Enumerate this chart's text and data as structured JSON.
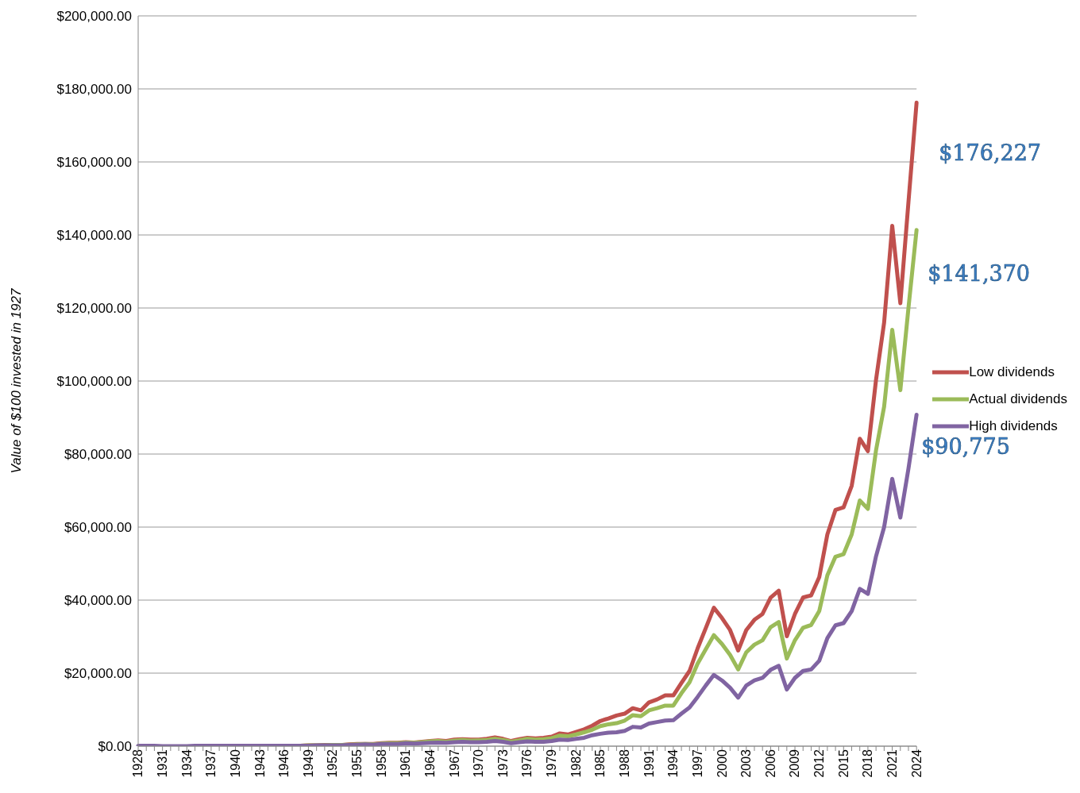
{
  "chart_data": {
    "type": "line",
    "ylabel": "Value of $100 invested in 1927",
    "categories": [
      "1928",
      null,
      null,
      "1931",
      null,
      null,
      "1934",
      null,
      null,
      "1937",
      null,
      null,
      "1940",
      null,
      null,
      "1943",
      null,
      null,
      "1946",
      null,
      null,
      "1949",
      null,
      null,
      "1952",
      null,
      null,
      "1955",
      null,
      null,
      "1958",
      null,
      null,
      "1961",
      null,
      null,
      "1964",
      null,
      null,
      "1967",
      null,
      null,
      "1970",
      null,
      null,
      "1973",
      null,
      null,
      "1976",
      null,
      null,
      "1979",
      null,
      null,
      "1982",
      null,
      null,
      "1985",
      null,
      null,
      "1988",
      null,
      null,
      "1991",
      null,
      null,
      "1994",
      null,
      null,
      "1997",
      null,
      null,
      "2000",
      null,
      null,
      "2003",
      null,
      null,
      "2006",
      null,
      null,
      "2009",
      null,
      null,
      "2012",
      null,
      null,
      "2015",
      null,
      null,
      "2018",
      null,
      null,
      "2021",
      null,
      null,
      "2024"
    ],
    "series": [
      {
        "name": "Low dividends",
        "color": "#c0504d",
        "values": [
          null,
          null,
          null,
          null,
          null,
          null,
          null,
          null,
          null,
          null,
          null,
          null,
          null,
          null,
          null,
          null,
          null,
          null,
          null,
          null,
          100,
          200,
          200,
          300,
          300,
          300,
          500,
          600,
          600,
          600,
          800,
          900,
          900,
          1100,
          1000,
          1200,
          1400,
          1600,
          1400,
          1800,
          1900,
          1800,
          1800,
          2000,
          2400,
          2000,
          1400,
          1900,
          2300,
          2100,
          2300,
          2600,
          3500,
          3200,
          3900,
          4600,
          5600,
          6900,
          7600,
          8400,
          8900,
          10400,
          9800,
          12000,
          12800,
          13900,
          13900,
          17300,
          20600,
          26800,
          32300,
          37900,
          35100,
          31800,
          26200,
          31800,
          34600,
          36200,
          40700,
          42600,
          30100,
          36200,
          40700,
          41300,
          46300,
          58000,
          64700,
          65400,
          71300,
          84200,
          80800,
          100300,
          116000,
          142500,
          121300,
          149000,
          176227
        ]
      },
      {
        "name": "Actual dividends",
        "color": "#9bbb59",
        "values": [
          null,
          null,
          null,
          null,
          null,
          null,
          null,
          null,
          null,
          null,
          null,
          null,
          null,
          null,
          null,
          null,
          null,
          null,
          null,
          100,
          100,
          200,
          200,
          200,
          300,
          300,
          400,
          500,
          600,
          500,
          700,
          800,
          800,
          1000,
          900,
          1100,
          1300,
          1400,
          1200,
          1500,
          1700,
          1500,
          1600,
          1700,
          2000,
          1700,
          1200,
          1600,
          2000,
          1800,
          1900,
          2200,
          2900,
          2700,
          3200,
          3800,
          4500,
          5500,
          6000,
          6300,
          7000,
          8500,
          8200,
          9800,
          10400,
          11100,
          11100,
          14500,
          17500,
          22600,
          26500,
          30400,
          28000,
          25000,
          21000,
          25700,
          27800,
          29000,
          32600,
          34000,
          24000,
          29000,
          32400,
          33200,
          37000,
          46800,
          51900,
          52600,
          58000,
          67300,
          65000,
          81000,
          93000,
          114000,
          97500,
          120000,
          141370
        ]
      },
      {
        "name": "High dividends",
        "color": "#8064a2",
        "values": [
          100,
          100,
          100,
          0,
          0,
          0,
          0,
          100,
          100,
          100,
          100,
          100,
          100,
          100,
          100,
          100,
          100,
          100,
          100,
          100,
          100,
          100,
          200,
          200,
          200,
          200,
          300,
          400,
          500,
          400,
          600,
          600,
          600,
          800,
          700,
          800,
          900,
          1000,
          900,
          1100,
          1200,
          1100,
          1100,
          1200,
          1400,
          1200,
          800,
          1100,
          1300,
          1200,
          1200,
          1400,
          1800,
          1700,
          2000,
          2300,
          3000,
          3400,
          3700,
          3800,
          4200,
          5300,
          5100,
          6200,
          6600,
          7000,
          7100,
          8900,
          10600,
          13500,
          16600,
          19500,
          18000,
          16000,
          13300,
          16600,
          18000,
          18700,
          20900,
          22000,
          15500,
          18700,
          20600,
          21000,
          23400,
          29600,
          33100,
          33700,
          37000,
          43100,
          41700,
          52000,
          60000,
          73200,
          62600,
          76000,
          90775
        ]
      }
    ],
    "ylim": [
      0,
      200000
    ],
    "yticks": [
      {
        "value": 0,
        "label": "$0.00"
      },
      {
        "value": 20000,
        "label": "$20,000.00"
      },
      {
        "value": 40000,
        "label": "$40,000.00"
      },
      {
        "value": 60000,
        "label": "$60,000.00"
      },
      {
        "value": 80000,
        "label": "$80,000.00"
      },
      {
        "value": 100000,
        "label": "$100,000.00"
      },
      {
        "value": 120000,
        "label": "$120,000.00"
      },
      {
        "value": 140000,
        "label": "$140,000.00"
      },
      {
        "value": 160000,
        "label": "$160,000.00"
      },
      {
        "value": 180000,
        "label": "$180,000.00"
      },
      {
        "value": 200000,
        "label": "$200,000.00"
      }
    ],
    "annotations": [
      {
        "text": "$176,227",
        "x": "2024",
        "y": 176227
      },
      {
        "text": "$141,370",
        "x": "2024",
        "y": 141370
      },
      {
        "text": "$90,775",
        "x": "2024",
        "y": 90775
      }
    ],
    "grid": "y",
    "legend": "right",
    "marker": "none",
    "line_style": "solid"
  }
}
